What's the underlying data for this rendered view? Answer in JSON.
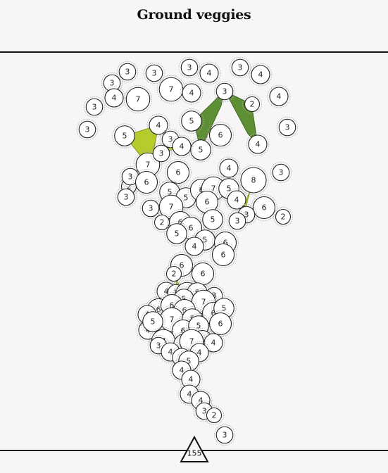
{
  "title": "Ground veggies",
  "page_number": "155",
  "colors": {
    "dark_green": "#5e8f34",
    "lime": "#b6cc2a",
    "node_fill": "#ffffff",
    "node_stroke": "#222222",
    "rule": "#111111"
  },
  "nodes": [
    {
      "v": "3"
    },
    {
      "v": "3"
    },
    {
      "v": "3"
    },
    {
      "v": "4"
    },
    {
      "v": "3"
    },
    {
      "v": "4"
    },
    {
      "v": "7"
    },
    {
      "v": "3"
    },
    {
      "v": "7"
    },
    {
      "v": "4"
    },
    {
      "v": "4"
    },
    {
      "v": "3"
    },
    {
      "v": "3"
    },
    {
      "v": "2"
    },
    {
      "v": "4"
    },
    {
      "v": "3"
    },
    {
      "v": "5"
    },
    {
      "v": "4"
    },
    {
      "v": "5"
    },
    {
      "v": "6"
    },
    {
      "v": "3"
    },
    {
      "v": "5"
    },
    {
      "v": "4"
    },
    {
      "v": "3"
    },
    {
      "v": "4"
    },
    {
      "v": "7"
    },
    {
      "v": "3"
    },
    {
      "v": "2"
    },
    {
      "v": "3"
    },
    {
      "v": "6"
    },
    {
      "v": "6"
    },
    {
      "v": "4"
    },
    {
      "v": "3"
    },
    {
      "v": "8"
    },
    {
      "v": "5"
    },
    {
      "v": "5"
    },
    {
      "v": "6"
    },
    {
      "v": "7"
    },
    {
      "v": "5"
    },
    {
      "v": "6"
    },
    {
      "v": "4"
    },
    {
      "v": "3"
    },
    {
      "v": "7"
    },
    {
      "v": "6"
    },
    {
      "v": "2"
    },
    {
      "v": "3"
    },
    {
      "v": "3"
    },
    {
      "v": "2"
    },
    {
      "v": "6"
    },
    {
      "v": "6"
    },
    {
      "v": "5"
    },
    {
      "v": "5"
    },
    {
      "v": "5"
    },
    {
      "v": "6"
    },
    {
      "v": "4"
    },
    {
      "v": "6"
    },
    {
      "v": "3"
    },
    {
      "v": "6"
    },
    {
      "v": "2"
    },
    {
      "v": "6"
    },
    {
      "v": "4"
    },
    {
      "v": "3"
    },
    {
      "v": "7"
    },
    {
      "v": "5"
    },
    {
      "v": "3"
    },
    {
      "v": "6"
    },
    {
      "v": "5"
    },
    {
      "v": "7"
    },
    {
      "v": "4"
    },
    {
      "v": "6"
    },
    {
      "v": "6"
    },
    {
      "v": "5"
    },
    {
      "v": "6"
    },
    {
      "v": "7"
    },
    {
      "v": "5"
    },
    {
      "v": "6"
    },
    {
      "v": "6"
    },
    {
      "v": "5"
    },
    {
      "v": "4"
    },
    {
      "v": "5"
    },
    {
      "v": "6"
    },
    {
      "v": "7"
    },
    {
      "v": "4"
    },
    {
      "v": "3"
    },
    {
      "v": "6"
    },
    {
      "v": "4"
    },
    {
      "v": "7"
    },
    {
      "v": "4"
    },
    {
      "v": "4"
    },
    {
      "v": "5"
    },
    {
      "v": "4"
    },
    {
      "v": "4"
    },
    {
      "v": "4"
    },
    {
      "v": "4"
    },
    {
      "v": "3"
    },
    {
      "v": "2"
    }
  ]
}
